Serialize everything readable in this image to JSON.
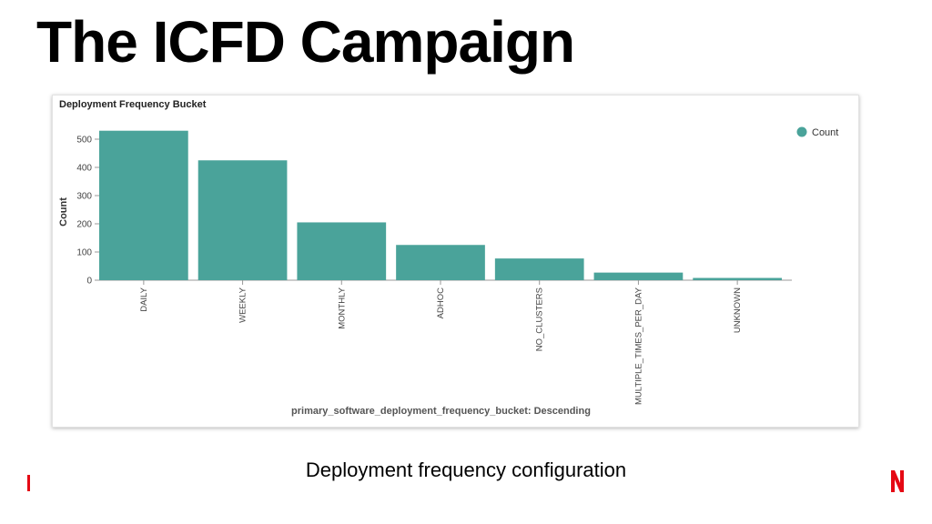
{
  "slide": {
    "title": "The ICFD Campaign",
    "caption": "Deployment frequency configuration"
  },
  "panel": {
    "title": "Deployment Frequency Bucket"
  },
  "colors": {
    "bar": "#4aa39a",
    "brand": "#e50914"
  },
  "chart_data": {
    "type": "bar",
    "title": "Deployment Frequency Bucket",
    "xlabel": "primary_software_deployment_frequency_bucket: Descending",
    "ylabel": "Count",
    "categories": [
      "DAILY",
      "WEEKLY",
      "MONTHLY",
      "ADHOC",
      "NO_CLUSTERS",
      "MULTIPLE_TIMES_PER_DAY",
      "UNKNOWN"
    ],
    "series": [
      {
        "name": "Count",
        "values": [
          530,
          425,
          205,
          125,
          77,
          27,
          8
        ]
      }
    ],
    "ylim": [
      0,
      500
    ],
    "yticks": [
      0,
      100,
      200,
      300,
      400,
      500
    ],
    "grid": false,
    "legend_position": "top-right"
  }
}
